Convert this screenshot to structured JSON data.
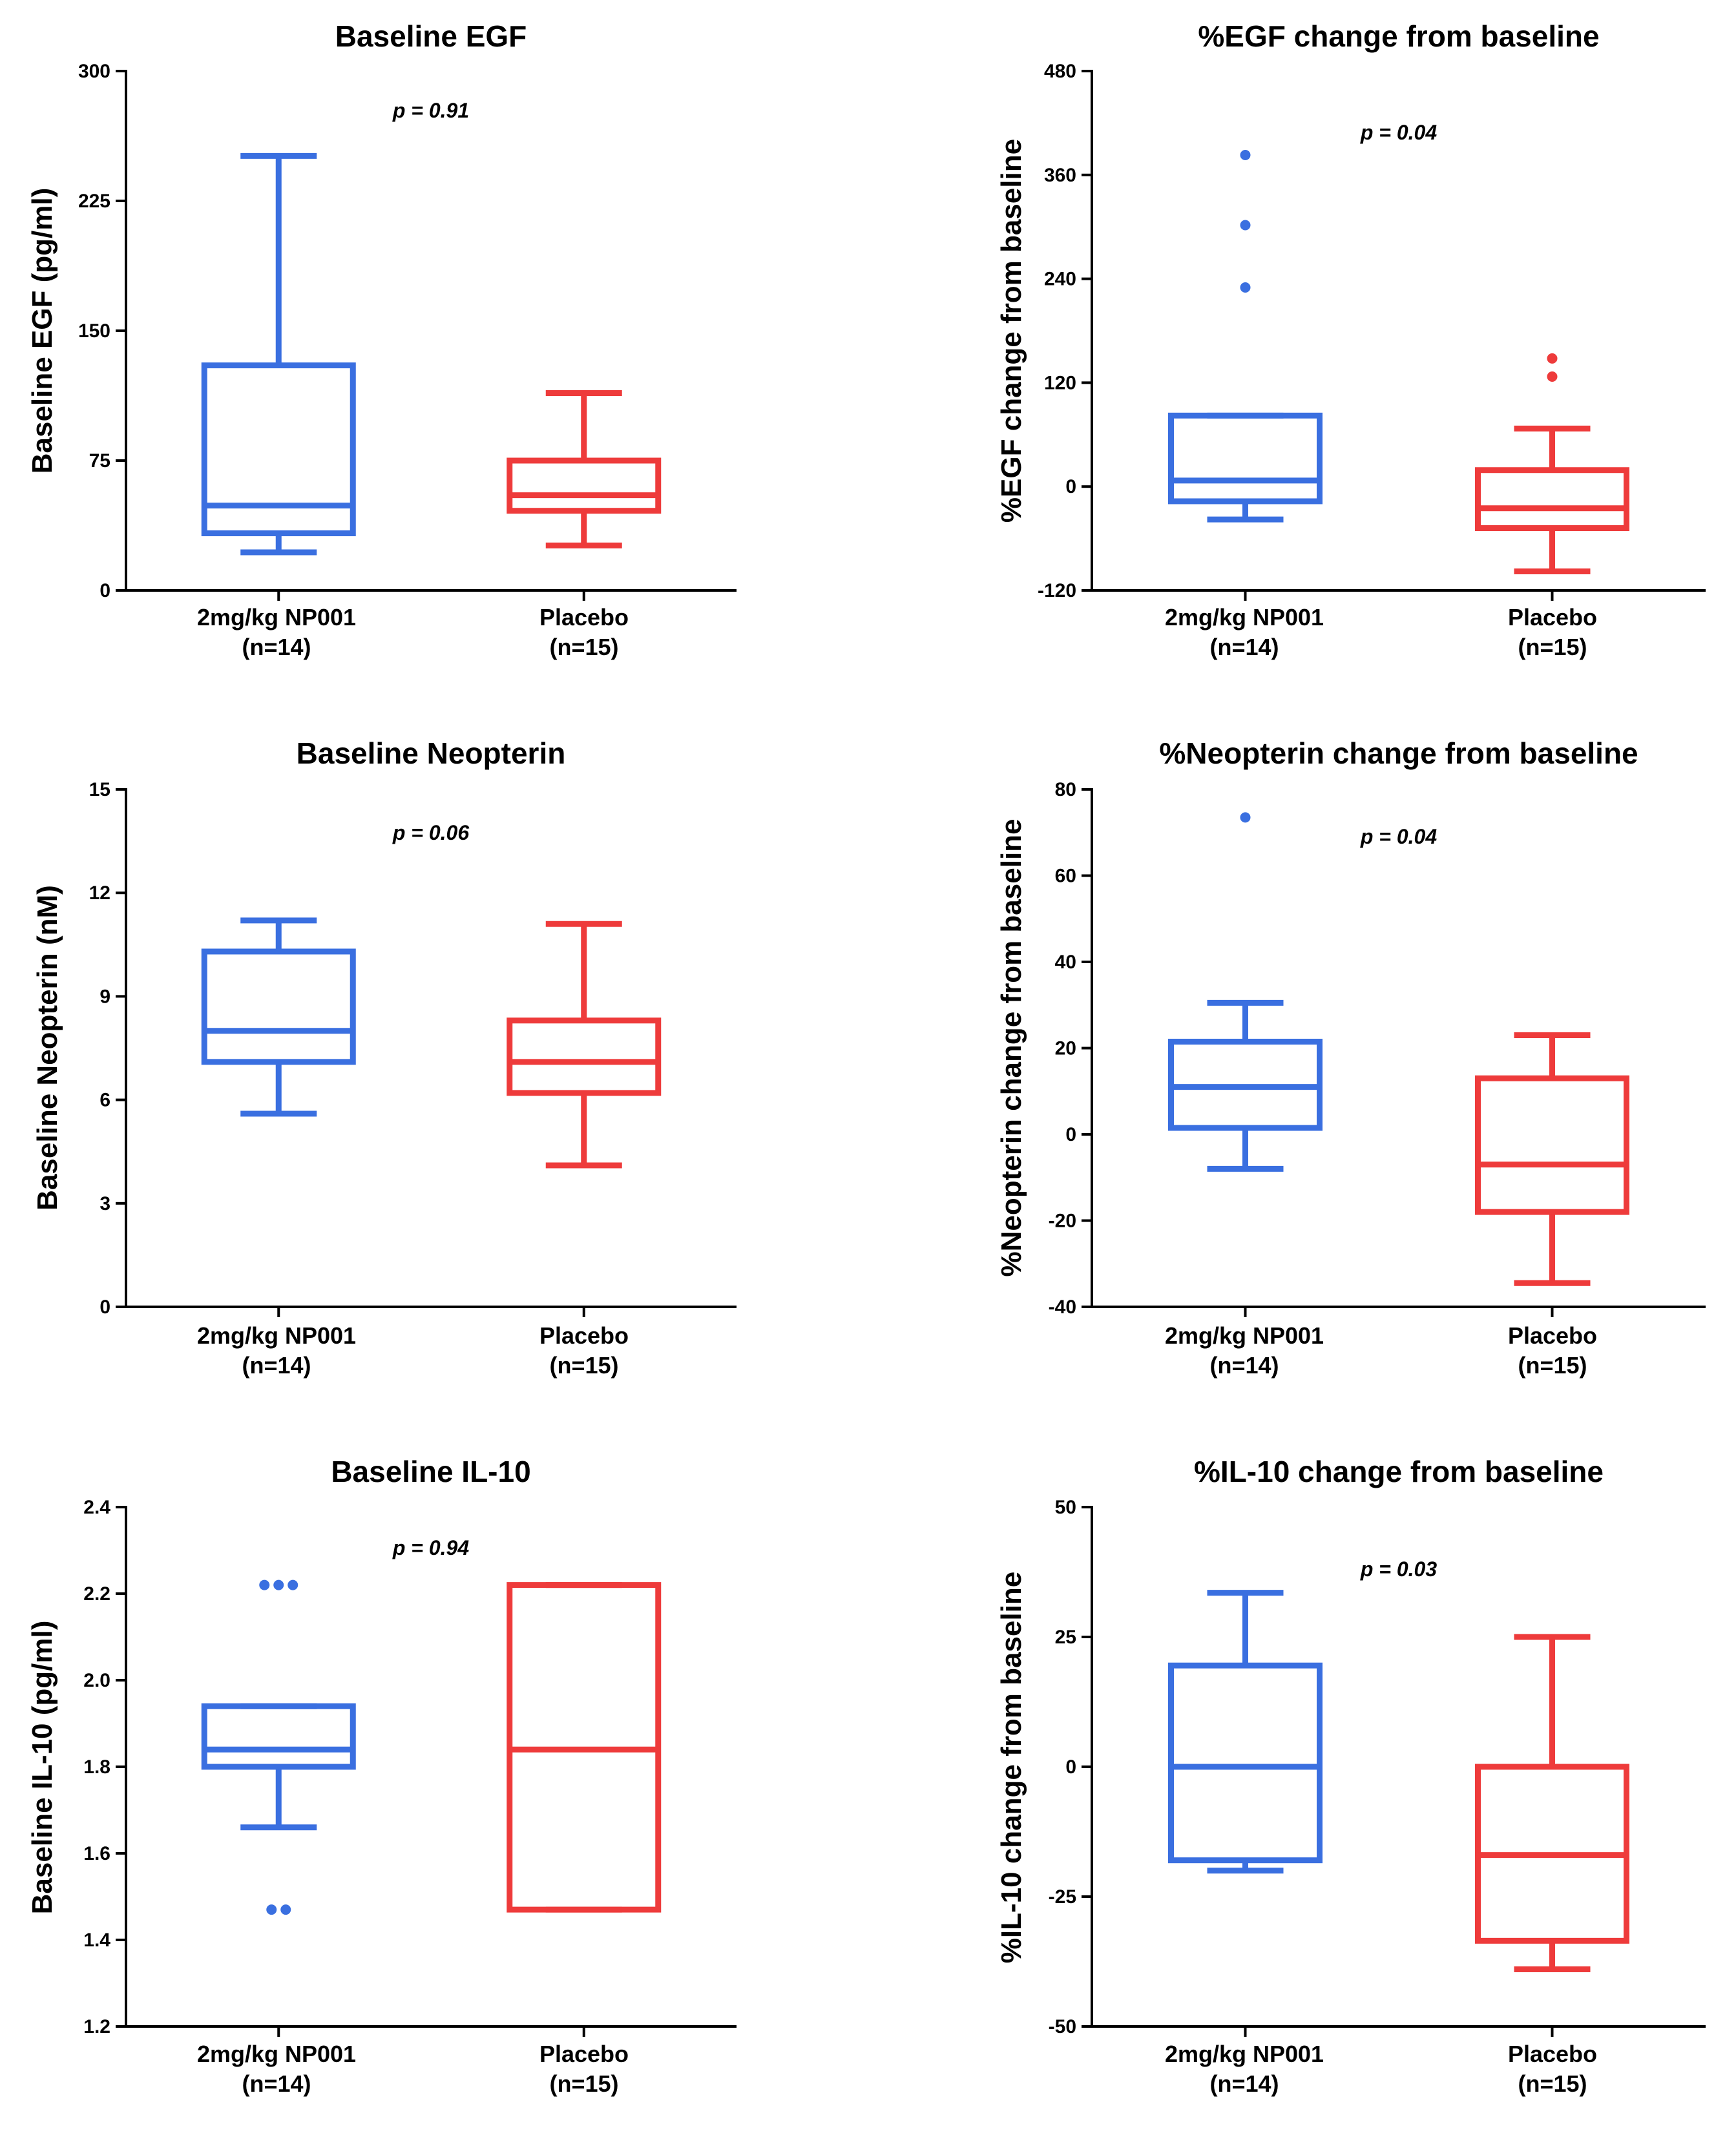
{
  "colors": {
    "treatment": "#3a6fe0",
    "placebo": "#ee3b3b",
    "axis": "#000000"
  },
  "chart_data": [
    {
      "type": "box",
      "title": "Baseline EGF",
      "ylabel": "Baseline EGF (pg/ml)",
      "ylim": [
        0,
        300
      ],
      "yticks": [
        "0",
        "75",
        "150",
        "225",
        "300"
      ],
      "p_value": "p = 0.91",
      "groups": [
        {
          "name": "2mg/kg NP001",
          "n_label": "(n=14)",
          "series": "treatment",
          "whisker_low": 22,
          "q1": 33,
          "median": 49,
          "q3": 130,
          "whisker_high": 251,
          "outliers": []
        },
        {
          "name": "Placebo",
          "n_label": "(n=15)",
          "series": "placebo",
          "whisker_low": 26,
          "q1": 46,
          "median": 55,
          "q3": 75,
          "whisker_high": 114,
          "outliers": []
        }
      ]
    },
    {
      "type": "box",
      "title": "%EGF change from baseline",
      "ylabel": "%EGF change from baseline",
      "ylim": [
        -120,
        480
      ],
      "yticks": [
        "-120",
        "0",
        "120",
        "240",
        "360",
        "480"
      ],
      "p_value": "p = 0.04",
      "groups": [
        {
          "name": "2mg/kg NP001",
          "n_label": "(n=14)",
          "series": "treatment",
          "whisker_low": -38,
          "q1": -17,
          "median": 7,
          "q3": 82,
          "whisker_high": 82,
          "outliers": [
            230,
            302,
            383
          ]
        },
        {
          "name": "Placebo",
          "n_label": "(n=15)",
          "series": "placebo",
          "whisker_low": -98,
          "q1": -48,
          "median": -25,
          "q3": 19,
          "whisker_high": 67,
          "outliers": [
            127,
            148
          ]
        }
      ]
    },
    {
      "type": "box",
      "title": "Baseline Neopterin",
      "ylabel": "Baseline Neopterin (nM)",
      "ylim": [
        0,
        15
      ],
      "yticks": [
        "0",
        "3",
        "6",
        "9",
        "12",
        "15"
      ],
      "p_value": "p = 0.06",
      "groups": [
        {
          "name": "2mg/kg NP001",
          "n_label": "(n=14)",
          "series": "treatment",
          "whisker_low": 5.6,
          "q1": 7.1,
          "median": 8.0,
          "q3": 10.3,
          "whisker_high": 11.2,
          "outliers": []
        },
        {
          "name": "Placebo",
          "n_label": "(n=15)",
          "series": "placebo",
          "whisker_low": 4.1,
          "q1": 6.2,
          "median": 7.1,
          "q3": 8.3,
          "whisker_high": 11.1,
          "outliers": []
        }
      ]
    },
    {
      "type": "box",
      "title": "%Neopterin change from baseline",
      "ylabel": "%Neopterin change from baseline",
      "ylim": [
        -40,
        80
      ],
      "yticks": [
        "-40",
        "-20",
        "0",
        "20",
        "40",
        "60",
        "80"
      ],
      "p_value": "p = 0.04",
      "groups": [
        {
          "name": "2mg/kg NP001",
          "n_label": "(n=14)",
          "series": "treatment",
          "whisker_low": -8,
          "q1": 1.5,
          "median": 11,
          "q3": 21.5,
          "whisker_high": 30.5,
          "outliers": [
            73.5
          ]
        },
        {
          "name": "Placebo",
          "n_label": "(n=15)",
          "series": "placebo",
          "whisker_low": -34.5,
          "q1": -18,
          "median": -7,
          "q3": 13,
          "whisker_high": 23,
          "outliers": []
        }
      ]
    },
    {
      "type": "box",
      "title": "Baseline IL-10",
      "ylabel": "Baseline IL-10 (pg/ml)",
      "ylim": [
        1.2,
        2.4
      ],
      "yticks": [
        "1.2",
        "1.4",
        "1.6",
        "1.8",
        "2.0",
        "2.2",
        "2.4"
      ],
      "p_value": "p = 0.94",
      "groups": [
        {
          "name": "2mg/kg NP001",
          "n_label": "(n=14)",
          "series": "treatment",
          "whisker_low": 1.66,
          "q1": 1.8,
          "median": 1.84,
          "q3": 1.94,
          "whisker_high": 1.94,
          "outliers": [
            1.47,
            1.47,
            2.22,
            2.22,
            2.22
          ]
        },
        {
          "name": "Placebo",
          "n_label": "(n=15)",
          "series": "placebo",
          "whisker_low": 1.47,
          "q1": 1.47,
          "median": 1.84,
          "q3": 2.22,
          "whisker_high": 2.22,
          "outliers": []
        }
      ]
    },
    {
      "type": "box",
      "title": "%IL-10 change from baseline",
      "ylabel": "%IL-10 change from baseline",
      "ylim": [
        -50,
        50
      ],
      "yticks": [
        "-50",
        "-25",
        "0",
        "25",
        "50"
      ],
      "p_value": "p = 0.03",
      "groups": [
        {
          "name": "2mg/kg NP001",
          "n_label": "(n=14)",
          "series": "treatment",
          "whisker_low": -20,
          "q1": -18,
          "median": 0,
          "q3": 19.5,
          "whisker_high": 33.5,
          "outliers": []
        },
        {
          "name": "Placebo",
          "n_label": "(n=15)",
          "series": "placebo",
          "whisker_low": -39,
          "q1": -33.5,
          "median": -17,
          "q3": 0,
          "whisker_high": 25,
          "outliers": []
        }
      ]
    }
  ]
}
